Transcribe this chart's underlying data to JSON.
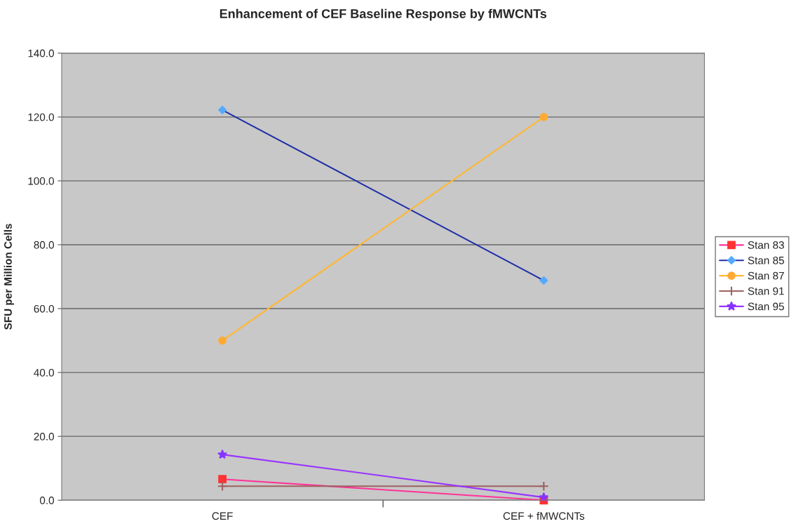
{
  "chart_data": {
    "type": "line",
    "title": "Enhancement of CEF Baseline Response by fMWCNTs",
    "ylabel": "SFU per Million Cells",
    "categories": [
      "CEF",
      "CEF + fMWCNTs"
    ],
    "series": [
      {
        "name": "Stan 83",
        "color": "#ff3399",
        "colors": [
          "#ff3333",
          "#ff3333"
        ],
        "marker": "square",
        "values": [
          6.6,
          0
        ]
      },
      {
        "name": "Stan 85",
        "color": "#1f2fa8",
        "colors": [
          "#55aaff",
          "#55aaff"
        ],
        "marker": "diamond",
        "values": [
          122.2,
          68.8
        ]
      },
      {
        "name": "Stan 87",
        "color": "#ffb733",
        "colors": [
          "#ffaa33",
          "#ffaa33"
        ],
        "marker": "circle",
        "values": [
          50,
          120
        ]
      },
      {
        "name": "Stan 91",
        "color": "#a06060",
        "colors": [
          "#a06060",
          "#a06060"
        ],
        "marker": "cross",
        "values": [
          4.4,
          4.4
        ]
      },
      {
        "name": "Stan 95",
        "color": "#9933ff",
        "colors": [
          "#8833ff",
          "#8833ff"
        ],
        "marker": "star",
        "values": [
          14.3,
          0.9
        ]
      }
    ],
    "ylim": [
      0,
      140
    ],
    "yticks": [
      {
        "value": 0,
        "label": "0.0"
      },
      {
        "value": 20,
        "label": "20.0"
      },
      {
        "value": 40,
        "label": "40.0"
      },
      {
        "value": 60,
        "label": "60.0"
      },
      {
        "value": 80,
        "label": "80.0"
      },
      {
        "value": 100,
        "label": "100.0"
      },
      {
        "value": 120,
        "label": "120.0"
      },
      {
        "value": 140,
        "label": "140.0"
      }
    ],
    "grid": "y",
    "legend": "right",
    "line_style": "solid"
  }
}
